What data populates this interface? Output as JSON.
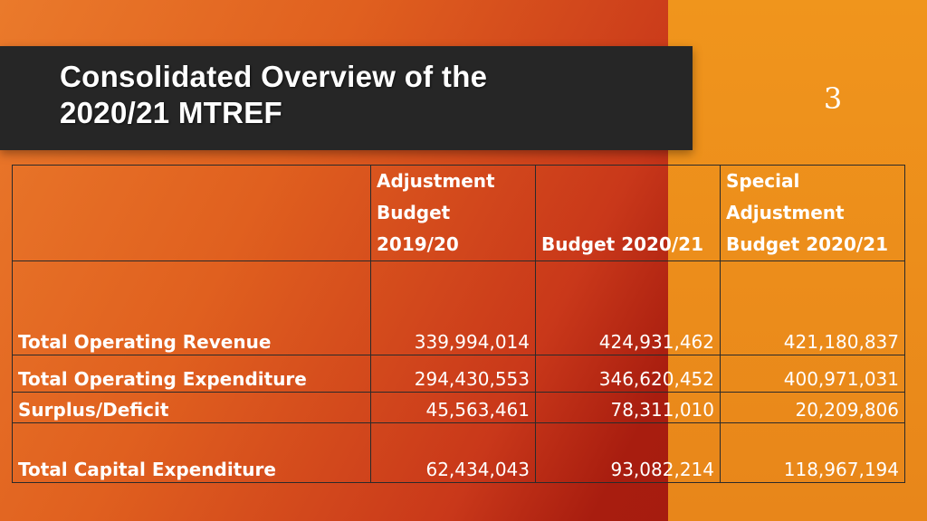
{
  "slide": {
    "title": "Consolidated Overview of the 2020/21 MTREF",
    "page_number": "3"
  },
  "table": {
    "headers": [
      {
        "lines": []
      },
      {
        "lines": [
          "Adjustment",
          "Budget 2019/20"
        ]
      },
      {
        "lines": [
          "Budget 2020/21"
        ]
      },
      {
        "lines": [
          "Special",
          "Adjustment",
          "Budget 2020/21"
        ]
      }
    ],
    "rows": [
      {
        "label": "Total Operating Revenue",
        "values": [
          "339,994,014",
          "424,931,462",
          "421,180,837"
        ]
      },
      {
        "label": "Total Operating Expenditure",
        "values": [
          "294,430,553",
          "346,620,452",
          "400,971,031"
        ]
      },
      {
        "label": "Surplus/Deficit",
        "values": [
          "45,563,461",
          "78,311,010",
          "20,209,806"
        ]
      },
      {
        "label": "Total Capital Expenditure",
        "values": [
          "62,434,043",
          "93,082,214",
          "118,967,194"
        ]
      }
    ]
  },
  "colors": {
    "title_bar": "#262626",
    "accent_orange": "#e8861a",
    "accent_red": "#a01a0e"
  }
}
